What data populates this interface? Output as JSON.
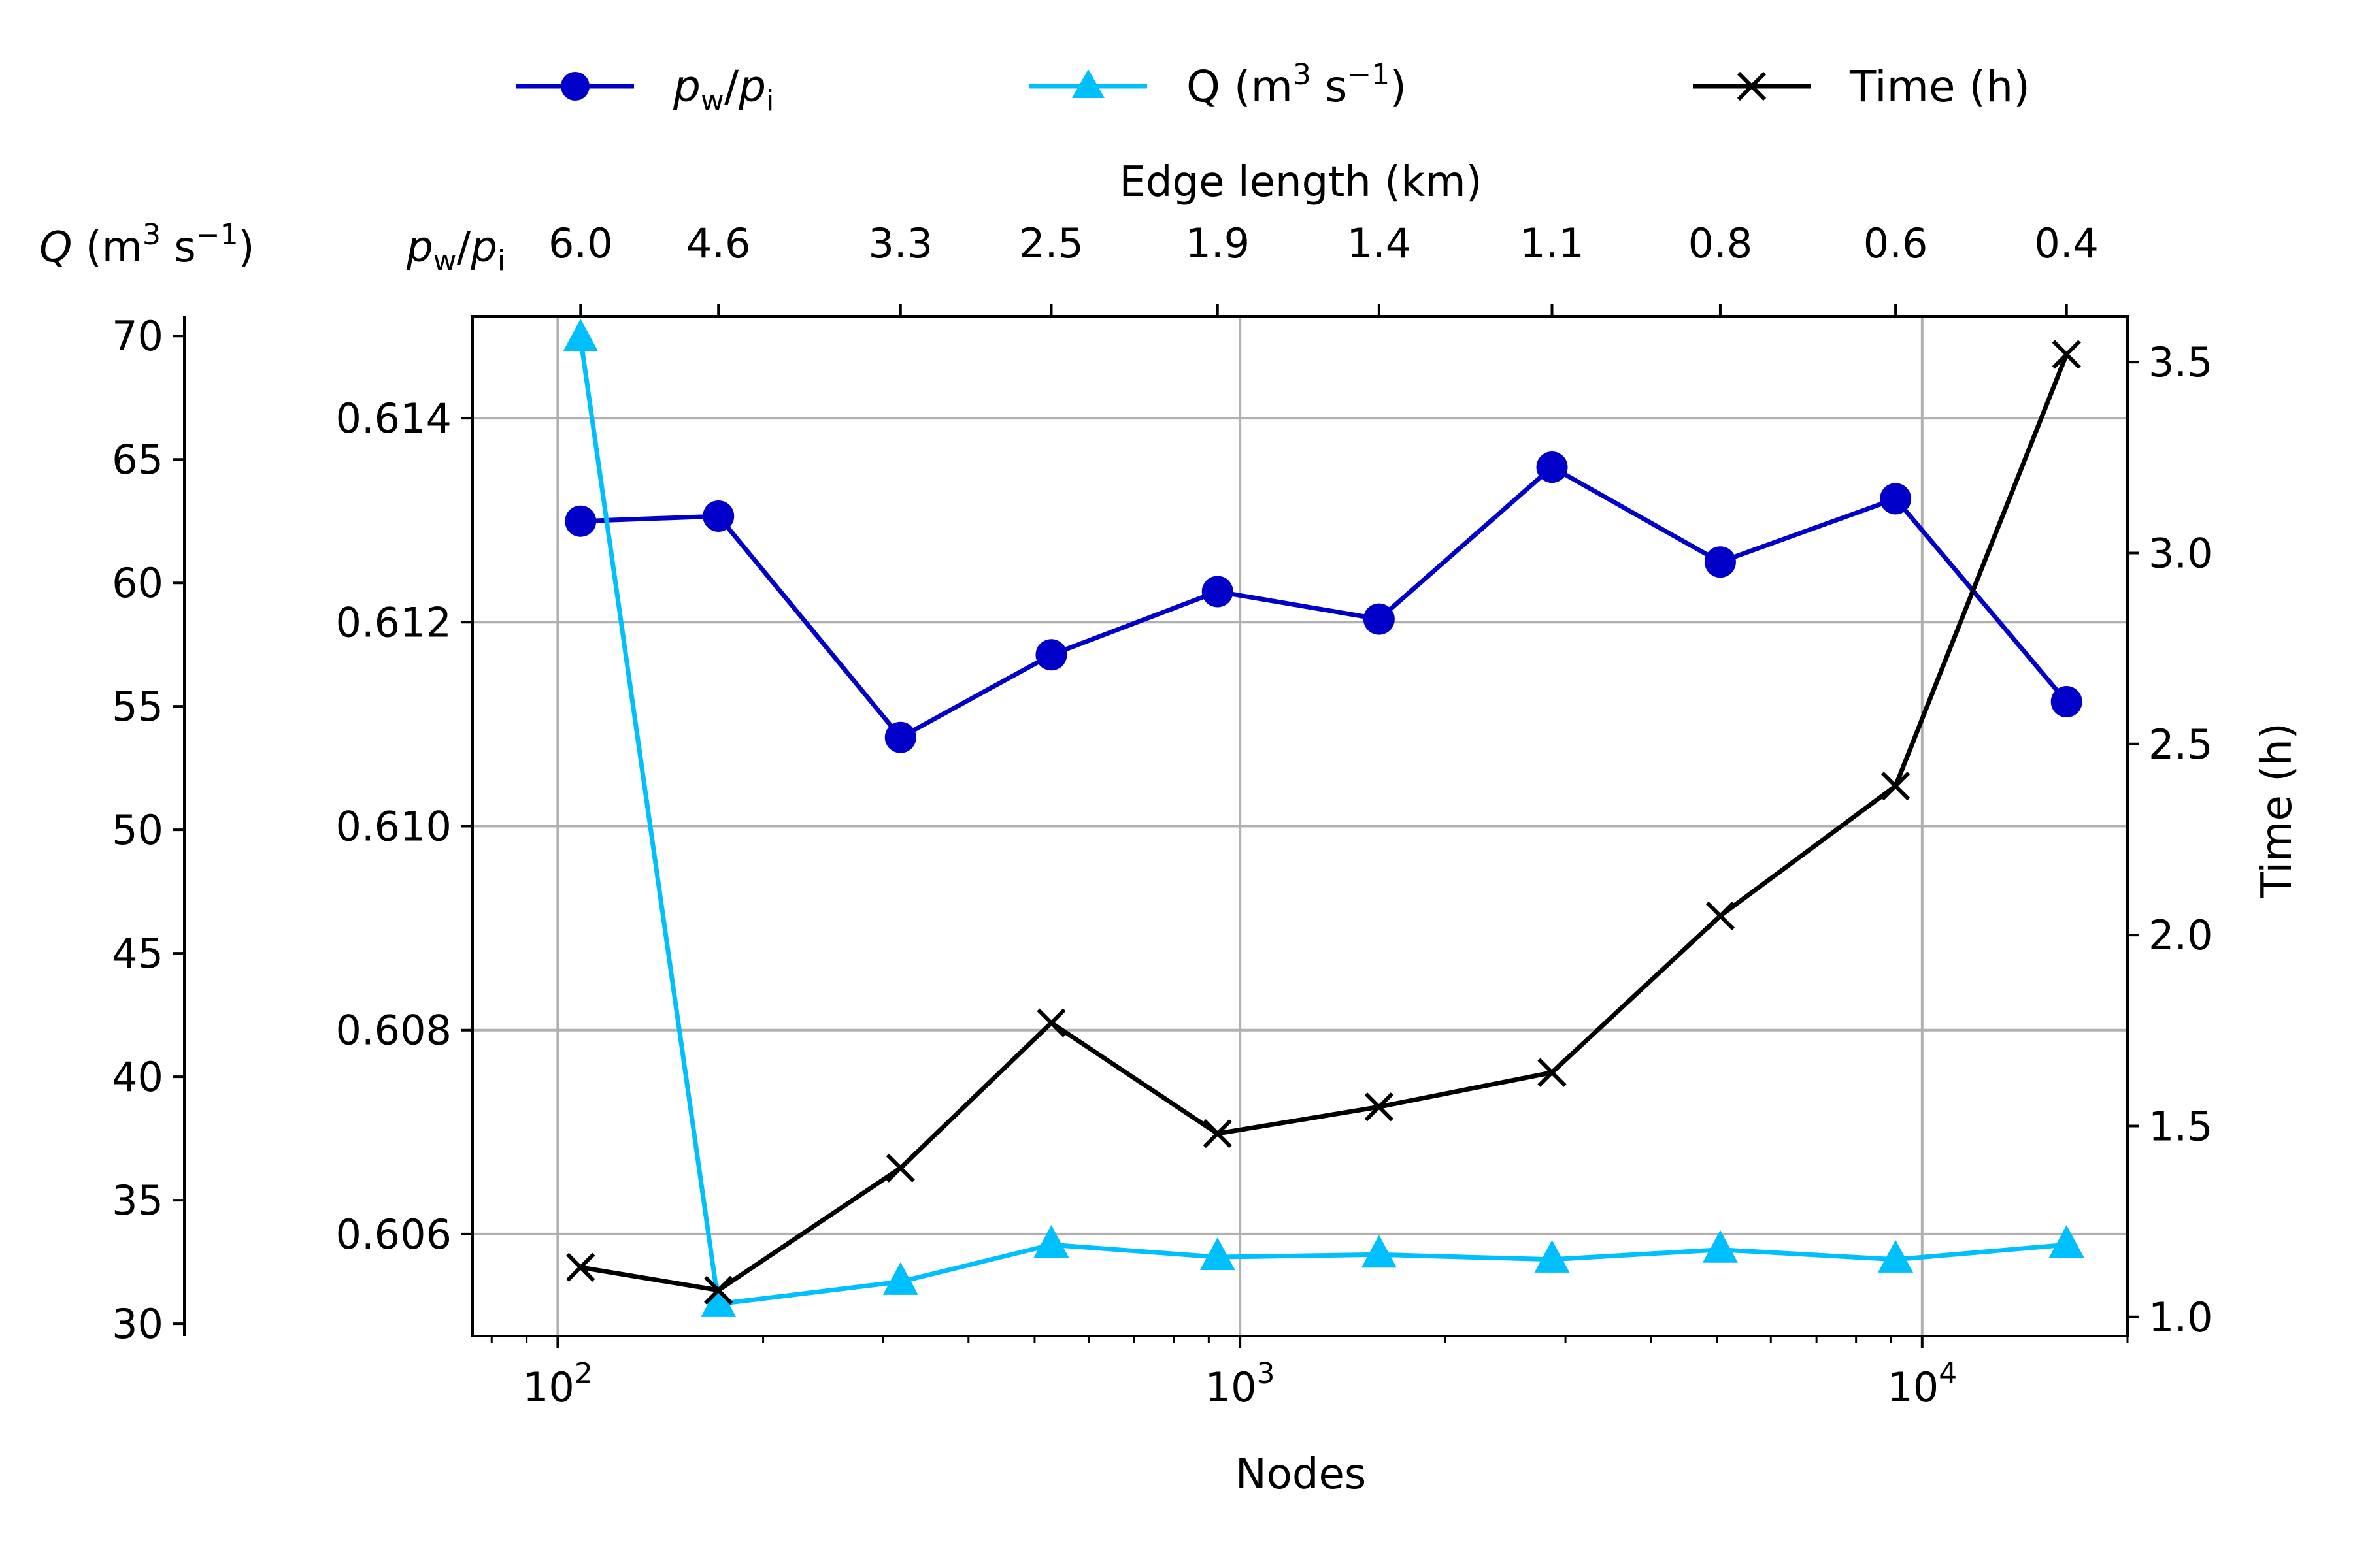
{
  "chart_data": {
    "type": "line",
    "xlabel": "Nodes",
    "x_scale": "log",
    "xlim": [
      75,
      20000
    ],
    "x": [
      108,
      172,
      318,
      529,
      927,
      1599,
      2867,
      5059,
      9141,
      16280
    ],
    "x_ticks": [
      100,
      1000,
      10000
    ],
    "x_tick_labels": [
      {
        "base": "10",
        "exp": "2"
      },
      {
        "base": "10",
        "exp": "3"
      },
      {
        "base": "10",
        "exp": "4"
      }
    ],
    "top_axis": {
      "label": "Edge length (km)",
      "tick_labels": [
        "6.0",
        "4.6",
        "3.3",
        "2.5",
        "1.9",
        "1.4",
        "1.1",
        "0.8",
        "0.6",
        "0.4"
      ]
    },
    "left_axis": {
      "label_parts": {
        "p1": "p",
        "s1": "w",
        "slash": "/",
        "p2": "p",
        "s2": "i"
      },
      "ylim": [
        0.605,
        0.615
      ],
      "ticks": [
        0.606,
        0.608,
        0.61,
        0.612,
        0.614
      ],
      "tick_labels": [
        "0.606",
        "0.608",
        "0.610",
        "0.612",
        "0.614"
      ]
    },
    "outer_left_axis": {
      "label_parts": {
        "q": "Q",
        "rest": " (m",
        "sup1": "3",
        "mid": " s",
        "sup2": "−1",
        "close": ")"
      },
      "ylim": [
        29.5,
        70.8
      ],
      "ticks": [
        30,
        35,
        40,
        45,
        50,
        55,
        60,
        65,
        70
      ],
      "tick_labels": [
        "30",
        "35",
        "40",
        "45",
        "50",
        "55",
        "60",
        "65",
        "70"
      ]
    },
    "right_axis": {
      "label": "Time (h)",
      "ylim": [
        0.95,
        3.62
      ],
      "ticks": [
        1.0,
        1.5,
        2.0,
        2.5,
        3.0,
        3.5
      ],
      "tick_labels": [
        "1.0",
        "1.5",
        "2.0",
        "2.5",
        "3.0",
        "3.5"
      ]
    },
    "grid": true,
    "legend_position": "top",
    "series": [
      {
        "key": "pw",
        "axis": "left",
        "color": "#0000c8",
        "marker": "circle",
        "values": [
          0.61299,
          0.61304,
          0.61087,
          0.61168,
          0.6123,
          0.61203,
          0.61352,
          0.61259,
          0.61321,
          0.61122
        ]
      },
      {
        "key": "q",
        "axis": "outer_left",
        "color": "#00bfff",
        "marker": "triangle",
        "values": [
          69.9,
          30.8,
          31.7,
          33.2,
          32.7,
          32.8,
          32.6,
          33.0,
          32.6,
          33.2
        ]
      },
      {
        "key": "time",
        "axis": "right",
        "color": "#000000",
        "marker": "x",
        "values": [
          1.13,
          1.07,
          1.39,
          1.77,
          1.48,
          1.55,
          1.64,
          2.05,
          2.39,
          3.52
        ]
      }
    ],
    "legend": {
      "pw": {
        "p1": "p",
        "s1": "w",
        "slash": "/",
        "p2": "p",
        "s2": "i"
      },
      "q": {
        "text": "Q (m",
        "sup1": "3",
        "mid": " s",
        "sup2": "−1",
        "close": ")"
      },
      "time": {
        "text": "Time (h)"
      }
    }
  }
}
